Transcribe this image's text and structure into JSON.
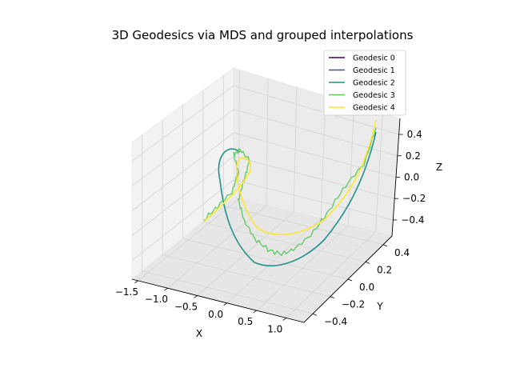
{
  "chart_data": {
    "type": "line3d",
    "title": "3D Geodesics via MDS and grouped interpolations",
    "xlabel": "X",
    "ylabel": "Y",
    "zlabel": "Z",
    "xlim": [
      -1.6,
      1.3
    ],
    "ylim": [
      -0.5,
      0.5
    ],
    "zlim": [
      -0.55,
      0.55
    ],
    "xticks": [
      "−1.5",
      "−1.0",
      "−0.5",
      "0.0",
      "0.5",
      "1.0"
    ],
    "yticks": [
      "−0.4",
      "−0.2",
      "0.0",
      "0.2",
      "0.4"
    ],
    "zticks": [
      "−0.4",
      "−0.2",
      "0.0",
      "0.2",
      "0.4"
    ],
    "legend_position": "upper-right",
    "series": [
      {
        "name": "Geodesic 0",
        "color": "#440154"
      },
      {
        "name": "Geodesic 1",
        "color": "#3b528b"
      },
      {
        "name": "Geodesic 2",
        "color": "#21918c"
      },
      {
        "name": "Geodesic 3",
        "color": "#5ec962"
      },
      {
        "name": "Geodesic 4",
        "color": "#fde725"
      }
    ]
  }
}
